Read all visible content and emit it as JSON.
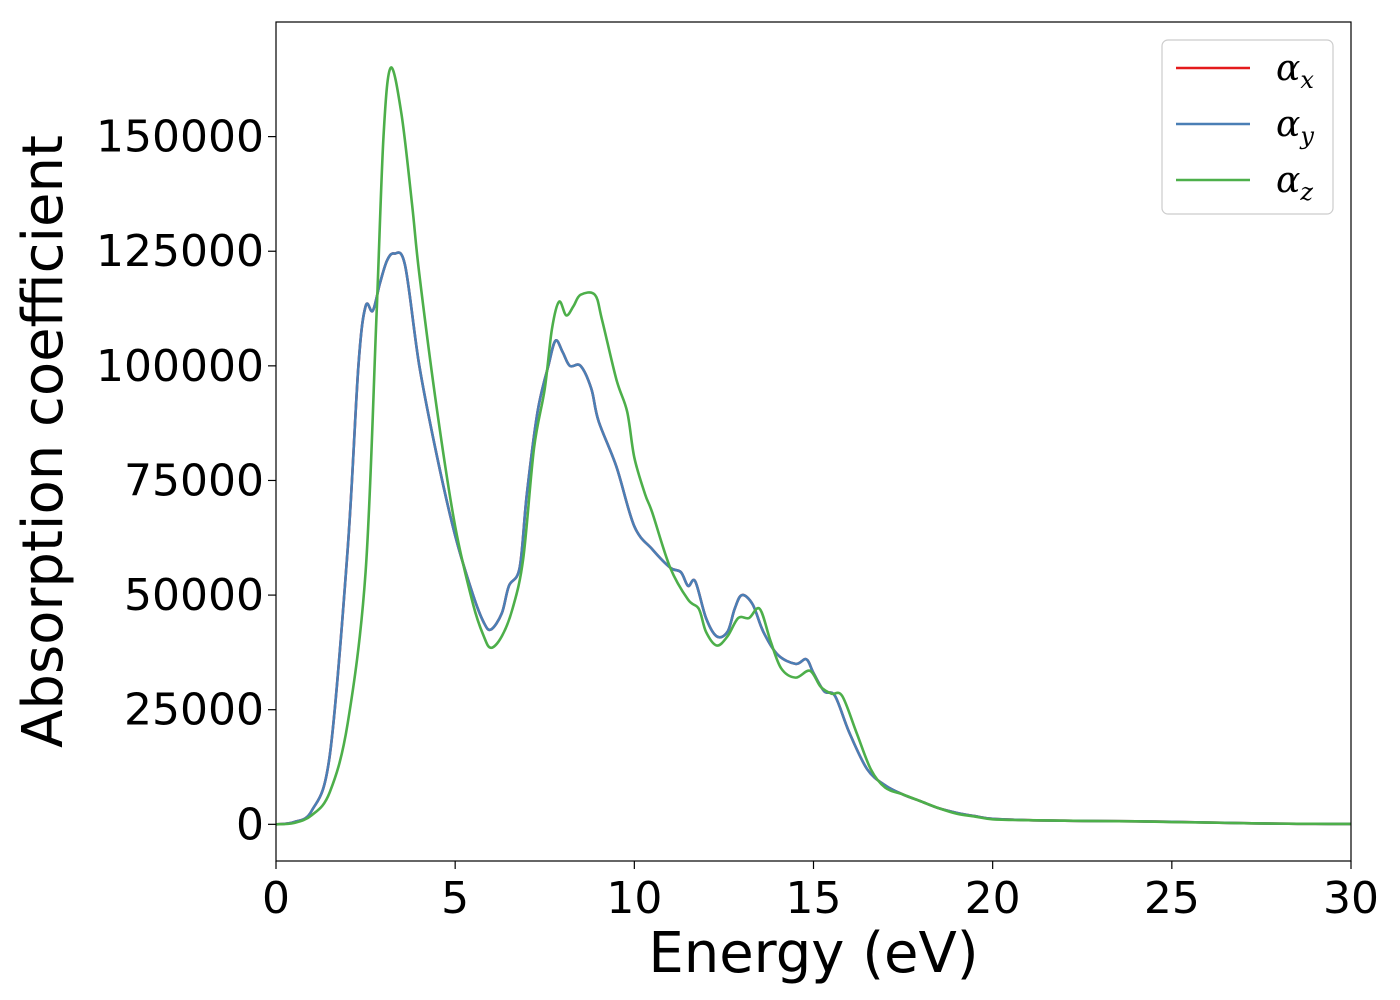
{
  "chart_data": {
    "type": "line",
    "xlabel": "Energy (eV)",
    "ylabel": "Absorption coefficient",
    "xlim": [
      0,
      30
    ],
    "ylim": [
      -8000,
      175000
    ],
    "xticks": [
      "0",
      "5",
      "10",
      "15",
      "20",
      "25",
      "30"
    ],
    "yticks": [
      "0",
      "25000",
      "50000",
      "75000",
      "100000",
      "125000",
      "150000"
    ],
    "grid": false,
    "legend_position": "top-right",
    "series": [
      {
        "name": "α",
        "subscript": "x",
        "color": "#e41a1c",
        "points": [
          [
            0,
            0
          ],
          [
            0.5,
            500
          ],
          [
            1.0,
            3000
          ],
          [
            1.5,
            15000
          ],
          [
            2.0,
            60000
          ],
          [
            2.3,
            100000
          ],
          [
            2.5,
            113000
          ],
          [
            2.7,
            112000
          ],
          [
            2.9,
            118000
          ],
          [
            3.1,
            123000
          ],
          [
            3.3,
            124500
          ],
          [
            3.6,
            122000
          ],
          [
            4.0,
            100000
          ],
          [
            4.5,
            80000
          ],
          [
            5.0,
            63000
          ],
          [
            5.5,
            50000
          ],
          [
            5.8,
            44000
          ],
          [
            6.0,
            42500
          ],
          [
            6.3,
            46000
          ],
          [
            6.5,
            52000
          ],
          [
            6.8,
            56000
          ],
          [
            7.0,
            72000
          ],
          [
            7.3,
            90000
          ],
          [
            7.6,
            100000
          ],
          [
            7.8,
            105500
          ],
          [
            8.0,
            103000
          ],
          [
            8.2,
            100000
          ],
          [
            8.5,
            100000
          ],
          [
            8.8,
            95000
          ],
          [
            9.0,
            88000
          ],
          [
            9.5,
            78000
          ],
          [
            10.0,
            65000
          ],
          [
            10.5,
            60000
          ],
          [
            11.0,
            56000
          ],
          [
            11.3,
            55000
          ],
          [
            11.5,
            52000
          ],
          [
            11.7,
            53000
          ],
          [
            12.0,
            45000
          ],
          [
            12.3,
            41000
          ],
          [
            12.6,
            42000
          ],
          [
            12.8,
            47000
          ],
          [
            13.0,
            50000
          ],
          [
            13.3,
            48000
          ],
          [
            13.6,
            42000
          ],
          [
            14.0,
            37000
          ],
          [
            14.5,
            35000
          ],
          [
            14.8,
            36000
          ],
          [
            15.0,
            33000
          ],
          [
            15.3,
            29000
          ],
          [
            15.6,
            28000
          ],
          [
            16.0,
            20000
          ],
          [
            16.5,
            12000
          ],
          [
            17.0,
            8500
          ],
          [
            17.5,
            6500
          ],
          [
            18.0,
            5000
          ],
          [
            18.5,
            3500
          ],
          [
            19.0,
            2500
          ],
          [
            19.5,
            1800
          ],
          [
            20.0,
            1200
          ],
          [
            21.0,
            900
          ],
          [
            22.0,
            800
          ],
          [
            23.0,
            700
          ],
          [
            24.0,
            650
          ],
          [
            25.0,
            550
          ],
          [
            26.0,
            400
          ],
          [
            27.0,
            250
          ],
          [
            28.0,
            150
          ],
          [
            29.0,
            100
          ],
          [
            30.0,
            80
          ]
        ]
      },
      {
        "name": "α",
        "subscript": "y",
        "color": "#4a7fb5",
        "points": [
          [
            0,
            0
          ],
          [
            0.5,
            500
          ],
          [
            1.0,
            3000
          ],
          [
            1.5,
            15000
          ],
          [
            2.0,
            60000
          ],
          [
            2.3,
            100000
          ],
          [
            2.5,
            113000
          ],
          [
            2.7,
            112000
          ],
          [
            2.9,
            118000
          ],
          [
            3.1,
            123000
          ],
          [
            3.3,
            124500
          ],
          [
            3.6,
            122000
          ],
          [
            4.0,
            100000
          ],
          [
            4.5,
            80000
          ],
          [
            5.0,
            63000
          ],
          [
            5.5,
            50000
          ],
          [
            5.8,
            44000
          ],
          [
            6.0,
            42500
          ],
          [
            6.3,
            46000
          ],
          [
            6.5,
            52000
          ],
          [
            6.8,
            56000
          ],
          [
            7.0,
            72000
          ],
          [
            7.3,
            90000
          ],
          [
            7.6,
            100000
          ],
          [
            7.8,
            105500
          ],
          [
            8.0,
            103000
          ],
          [
            8.2,
            100000
          ],
          [
            8.5,
            100000
          ],
          [
            8.8,
            95000
          ],
          [
            9.0,
            88000
          ],
          [
            9.5,
            78000
          ],
          [
            10.0,
            65000
          ],
          [
            10.5,
            60000
          ],
          [
            11.0,
            56000
          ],
          [
            11.3,
            55000
          ],
          [
            11.5,
            52000
          ],
          [
            11.7,
            53000
          ],
          [
            12.0,
            45000
          ],
          [
            12.3,
            41000
          ],
          [
            12.6,
            42000
          ],
          [
            12.8,
            47000
          ],
          [
            13.0,
            50000
          ],
          [
            13.3,
            48000
          ],
          [
            13.6,
            42000
          ],
          [
            14.0,
            37000
          ],
          [
            14.5,
            35000
          ],
          [
            14.8,
            36000
          ],
          [
            15.0,
            33000
          ],
          [
            15.3,
            29000
          ],
          [
            15.6,
            28000
          ],
          [
            16.0,
            20000
          ],
          [
            16.5,
            12000
          ],
          [
            17.0,
            8500
          ],
          [
            17.5,
            6500
          ],
          [
            18.0,
            5000
          ],
          [
            18.5,
            3500
          ],
          [
            19.0,
            2500
          ],
          [
            19.5,
            1800
          ],
          [
            20.0,
            1200
          ],
          [
            21.0,
            900
          ],
          [
            22.0,
            800
          ],
          [
            23.0,
            700
          ],
          [
            24.0,
            650
          ],
          [
            25.0,
            550
          ],
          [
            26.0,
            400
          ],
          [
            27.0,
            250
          ],
          [
            28.0,
            150
          ],
          [
            29.0,
            100
          ],
          [
            30.0,
            80
          ]
        ]
      },
      {
        "name": "α",
        "subscript": "z",
        "color": "#4daf4a",
        "points": [
          [
            0,
            0
          ],
          [
            0.5,
            300
          ],
          [
            1.0,
            2000
          ],
          [
            1.5,
            7000
          ],
          [
            2.0,
            22000
          ],
          [
            2.5,
            55000
          ],
          [
            2.8,
            110000
          ],
          [
            3.0,
            150000
          ],
          [
            3.2,
            165000
          ],
          [
            3.5,
            155000
          ],
          [
            3.8,
            135000
          ],
          [
            4.0,
            120000
          ],
          [
            4.5,
            90000
          ],
          [
            5.0,
            65000
          ],
          [
            5.5,
            48000
          ],
          [
            5.8,
            41000
          ],
          [
            6.0,
            38500
          ],
          [
            6.3,
            41000
          ],
          [
            6.6,
            47000
          ],
          [
            6.9,
            58000
          ],
          [
            7.2,
            82000
          ],
          [
            7.5,
            95000
          ],
          [
            7.7,
            108000
          ],
          [
            7.9,
            114000
          ],
          [
            8.1,
            111000
          ],
          [
            8.3,
            113000
          ],
          [
            8.5,
            115500
          ],
          [
            8.9,
            115500
          ],
          [
            9.1,
            110000
          ],
          [
            9.5,
            97000
          ],
          [
            9.8,
            90000
          ],
          [
            10.0,
            80000
          ],
          [
            10.3,
            72000
          ],
          [
            10.5,
            68000
          ],
          [
            11.0,
            56000
          ],
          [
            11.5,
            49000
          ],
          [
            11.8,
            47000
          ],
          [
            12.0,
            42000
          ],
          [
            12.3,
            39000
          ],
          [
            12.6,
            41000
          ],
          [
            12.9,
            45000
          ],
          [
            13.2,
            45000
          ],
          [
            13.5,
            47000
          ],
          [
            13.8,
            40000
          ],
          [
            14.1,
            34000
          ],
          [
            14.5,
            32000
          ],
          [
            14.9,
            33500
          ],
          [
            15.2,
            30000
          ],
          [
            15.5,
            28500
          ],
          [
            15.8,
            28000
          ],
          [
            16.2,
            20000
          ],
          [
            16.6,
            12000
          ],
          [
            17.0,
            8000
          ],
          [
            17.5,
            6500
          ],
          [
            18.0,
            5000
          ],
          [
            18.5,
            3500
          ],
          [
            19.0,
            2300
          ],
          [
            19.5,
            1700
          ],
          [
            20.0,
            1100
          ],
          [
            21.0,
            900
          ],
          [
            22.0,
            800
          ],
          [
            23.0,
            700
          ],
          [
            24.0,
            650
          ],
          [
            25.0,
            500
          ],
          [
            26.0,
            380
          ],
          [
            27.0,
            250
          ],
          [
            28.0,
            150
          ],
          [
            29.0,
            100
          ],
          [
            30.0,
            80
          ]
        ]
      }
    ]
  }
}
